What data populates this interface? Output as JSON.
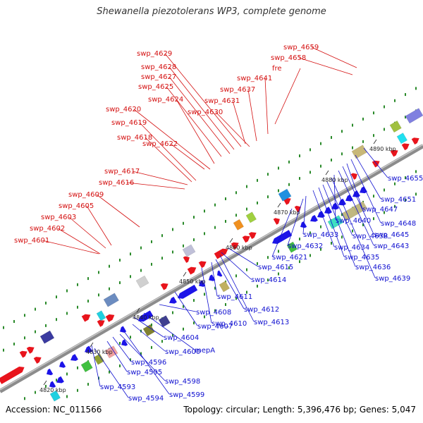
{
  "title": "Shewanella piezotolerans WP3, complete genome",
  "footer": {
    "accession": "Accession: NC_011566",
    "summary": "Topology: circular; Length: 5,396,476 bp; Genes: 5,047"
  },
  "colors": {
    "forward": "#e8141c",
    "reverse": "#1c14e8",
    "backbone": "#9a9a9a",
    "tick": "#2a8a2a",
    "forward_label": "#d41010",
    "reverse_label": "#1010d0"
  },
  "kbp_ticks": [
    "4820 kbp",
    "4830 kbp",
    "4840 kbp",
    "4850 kbp",
    "4860 kbp",
    "4870 kbp",
    "4880 kbp",
    "4890 kbp"
  ],
  "forward_genes": [
    "swp_4601",
    "swp_4602",
    "swp_4603",
    "swp_4605",
    "swp_4609",
    "swp_4616",
    "swp_4617",
    "swp_4618",
    "swp_4619",
    "swp_4620",
    "swp_4622",
    "swp_4624",
    "swp_4625",
    "swp_4627",
    "swp_4628",
    "swp_4629",
    "swp_4630",
    "swp_4631",
    "swp_4637",
    "swp_4641",
    "fre",
    "swp_4658",
    "swp_4659"
  ],
  "reverse_genes": [
    "swp_4593",
    "swp_4594",
    "swp_4595",
    "swp_4596",
    "swp_4598",
    "swp_4599",
    "swp_4600",
    "swp_4604",
    "mepA",
    "swp_4607",
    "swp_4608",
    "swp_4610",
    "swp_4611",
    "swp_4612",
    "swp_4613",
    "swp_4614",
    "swp_4615",
    "swp_4621",
    "swp_4632",
    "swp_4633",
    "swp_4634",
    "swp_4635",
    "swp_4636",
    "swp_4638",
    "swp_4639",
    "swp_4640",
    "swp_4643",
    "swp_4645",
    "swp_4647",
    "swp_4648",
    "swp_4651",
    "swp_4655"
  ]
}
